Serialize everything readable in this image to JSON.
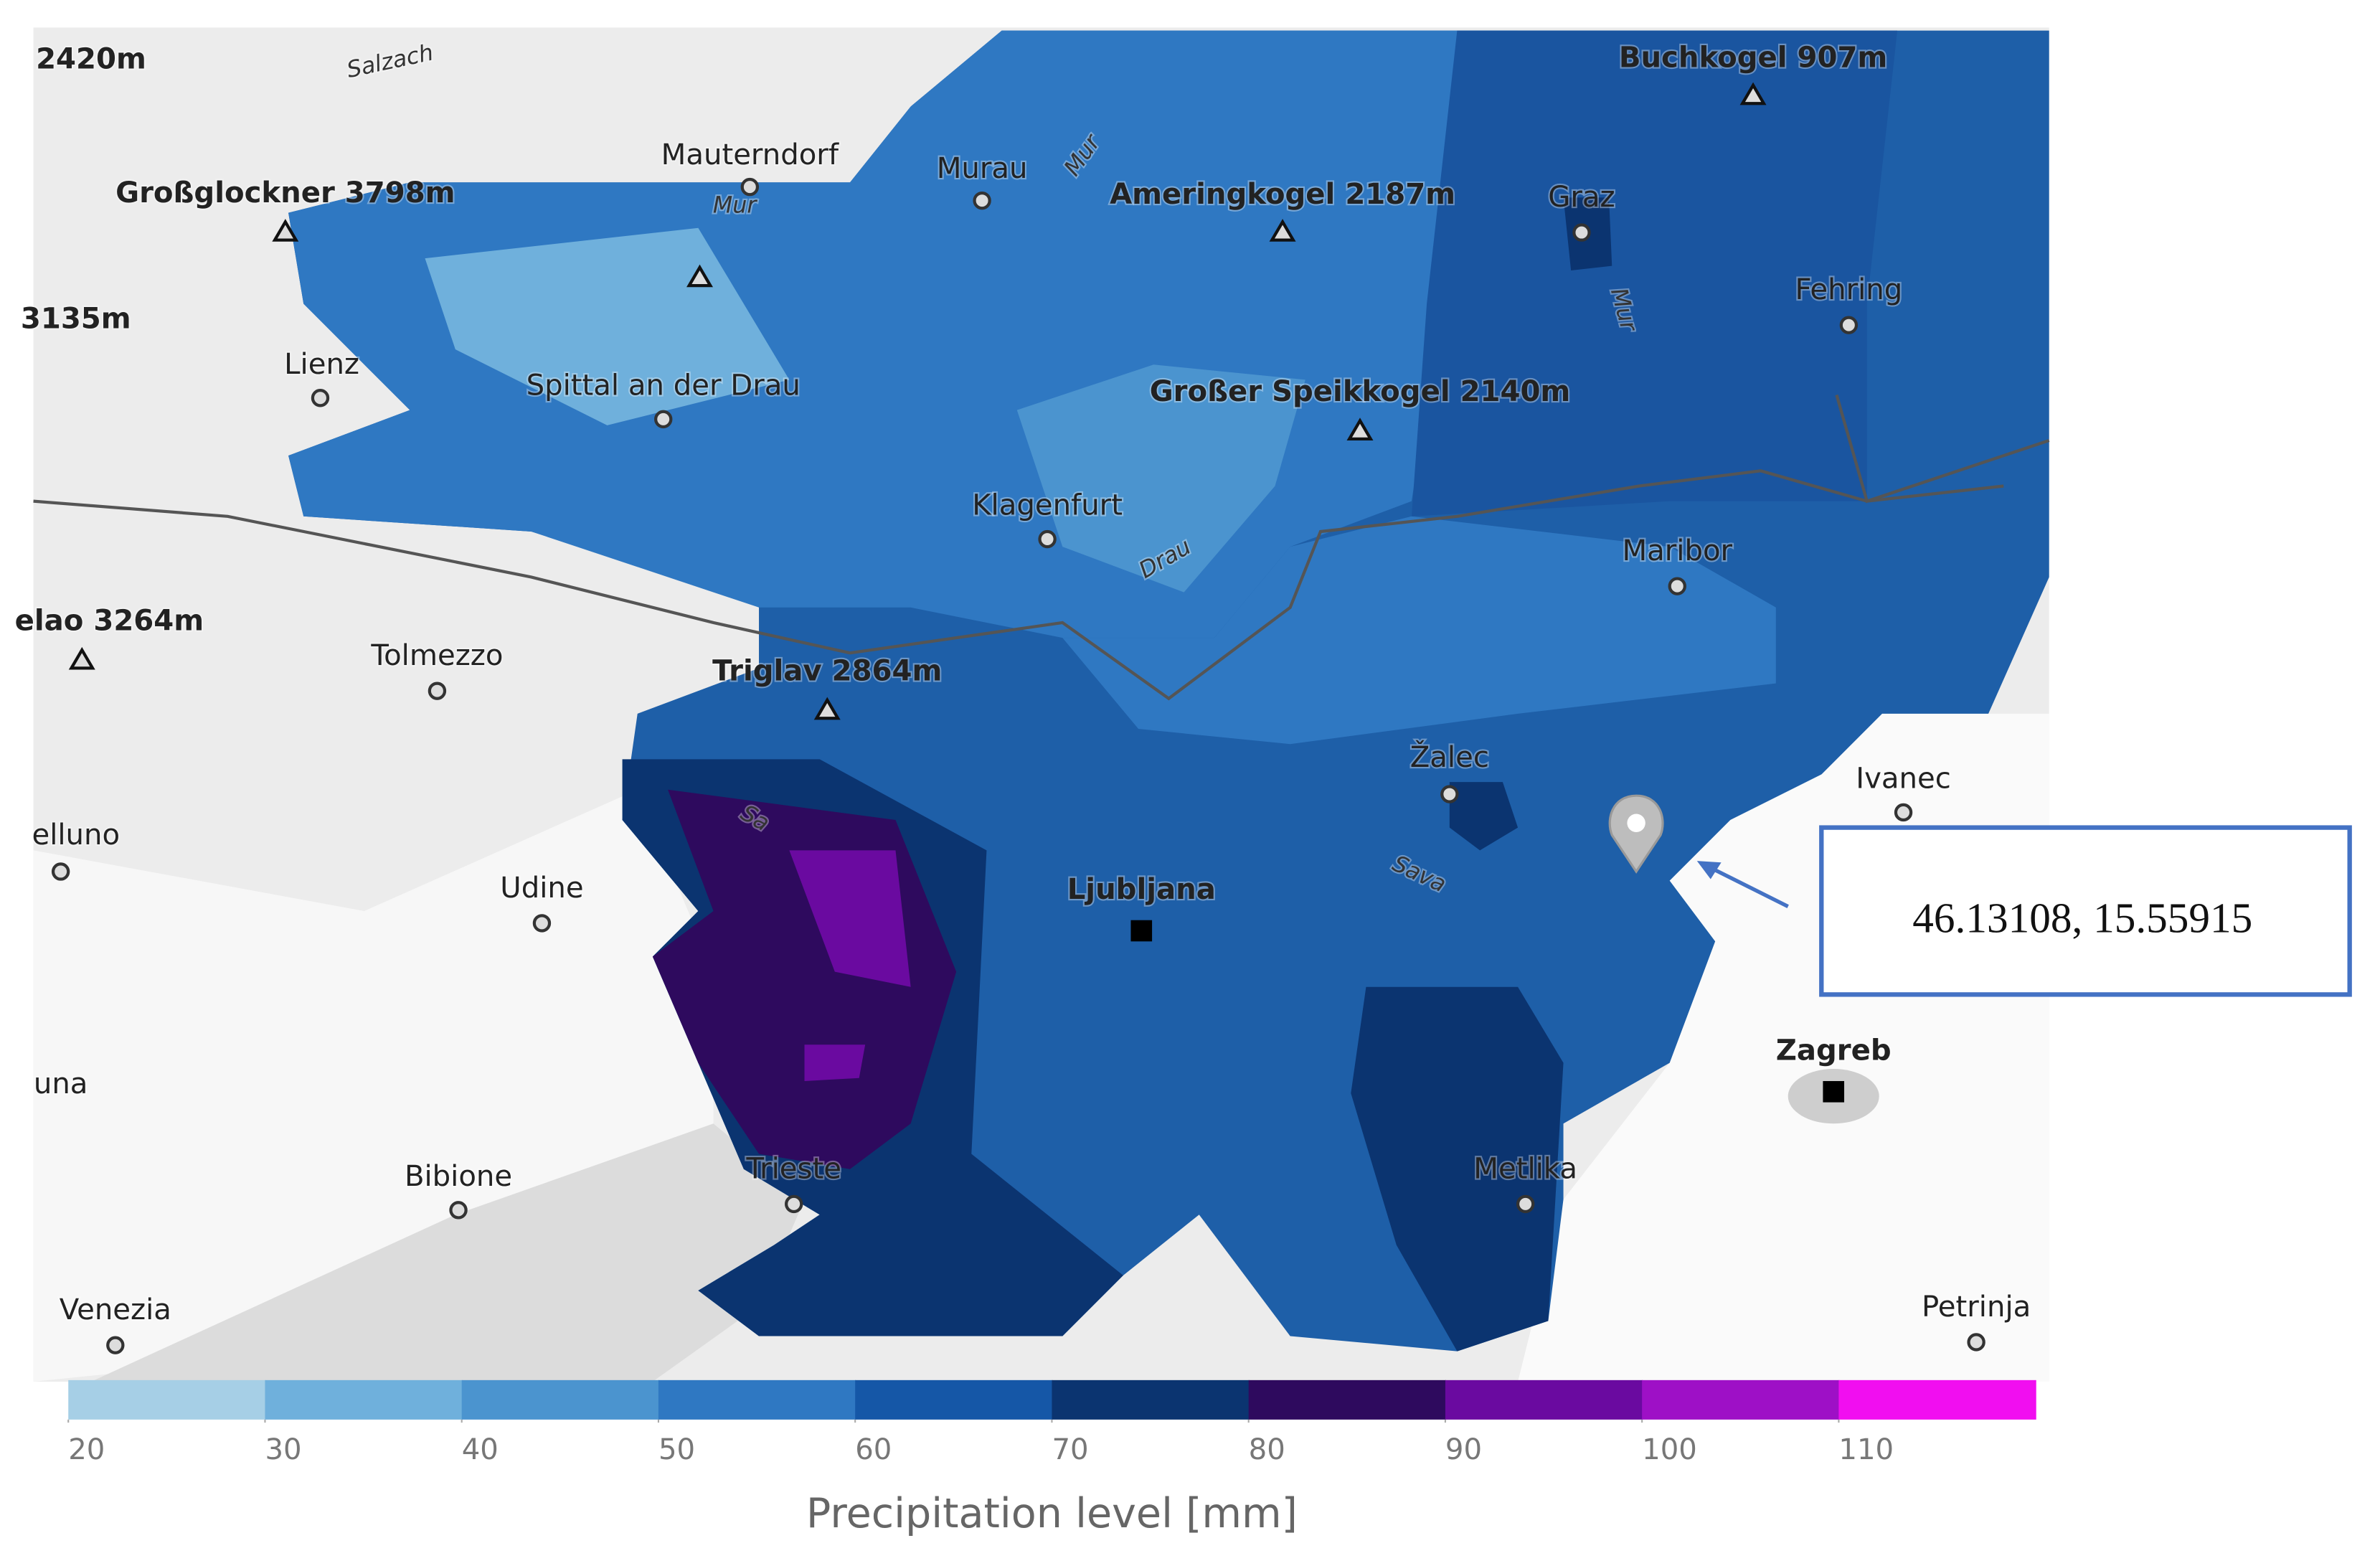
{
  "map": {
    "labels": [
      "2420m",
      "Salzach",
      "Mauterndorf",
      "Mur",
      "Murau",
      "Mur",
      "Ameringkogel 2187m",
      "Buchkogel 907m",
      "Graz",
      "Mur",
      "Fehring",
      "Großglockner 3798m",
      "3135m",
      "Lienz",
      "Spittal an der Drau",
      "Großer Speikkogel 2140m",
      "Klagenfurt",
      "Drau",
      "Maribor",
      "elao 3264m",
      "Tolmezzo",
      "Triglav 2864m",
      "Žalec",
      "Ivanec",
      "elluno",
      "Udine",
      "Ljubljana",
      "Sava",
      "Sa",
      "Zagreb",
      "una",
      "Bibione",
      "Trieste",
      "Metlika",
      "Venezia",
      "Petrinja"
    ]
  },
  "annotation": {
    "coordinates": "46.13108, 15.55915"
  },
  "chart_data": {
    "type": "colorbar",
    "title": "Precipitation level [mm]",
    "xlim": [
      20,
      120
    ],
    "xticks": [
      20,
      30,
      40,
      50,
      60,
      70,
      80,
      90,
      100,
      110
    ],
    "colors": [
      "#a6cfe6",
      "#6fb0dc",
      "#4b94cf",
      "#2f78c2",
      "#1557a7",
      "#0b3470",
      "#2e0a5e",
      "#6a0aa0",
      "#9e10c6",
      "#f10ef0"
    ]
  }
}
